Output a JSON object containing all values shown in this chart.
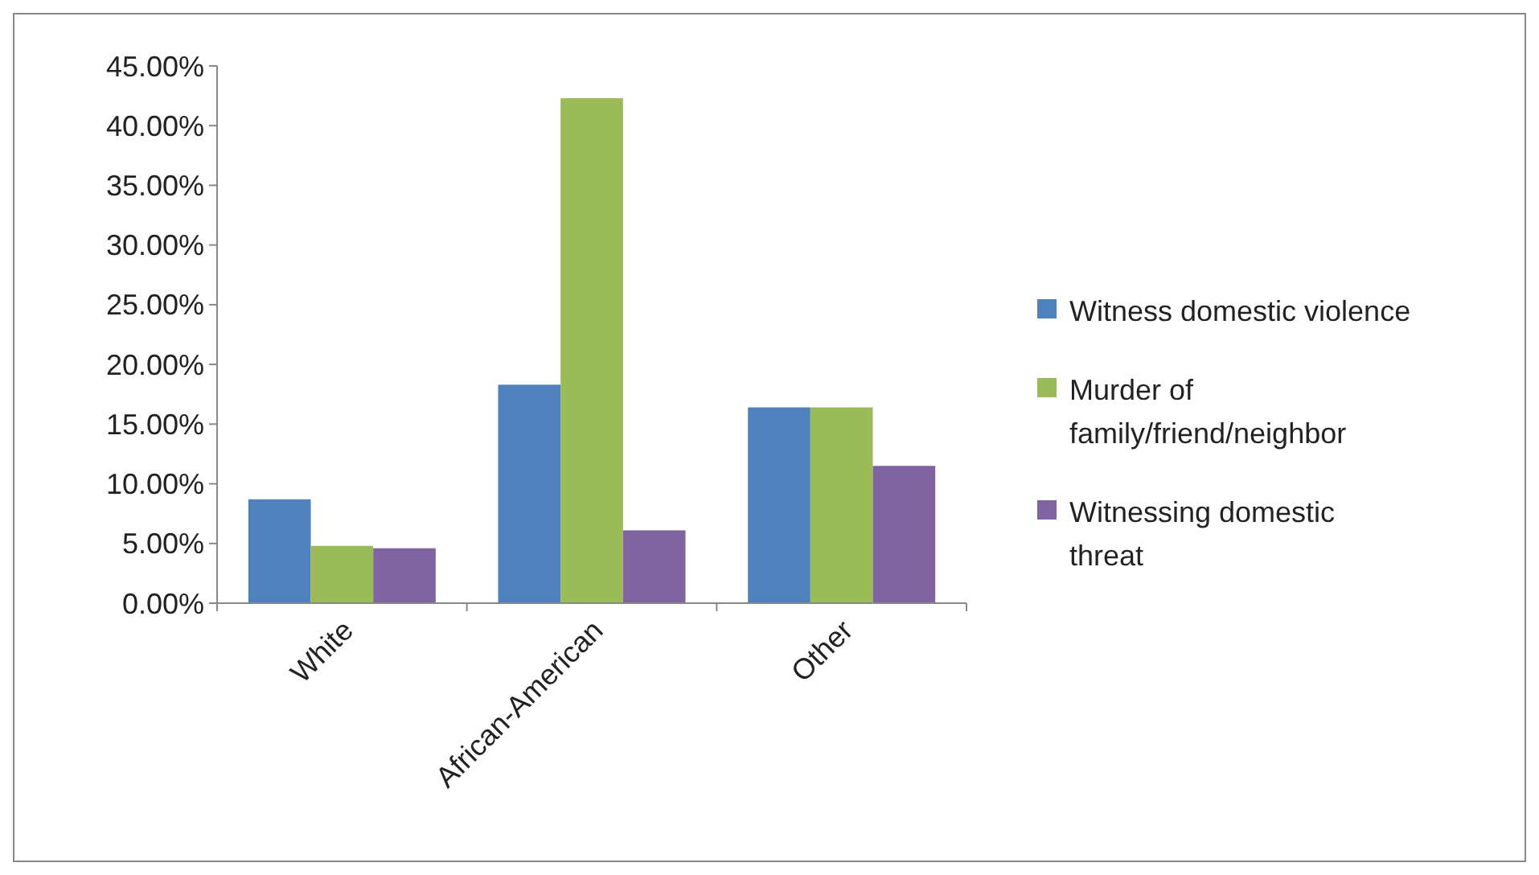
{
  "chart_data": {
    "type": "bar",
    "categories": [
      "White",
      "African-American",
      "Other"
    ],
    "series": [
      {
        "name": "Witness domestic violence",
        "color": "#4f81bd",
        "values": [
          8.7,
          18.3,
          16.4
        ]
      },
      {
        "name": "Murder of family/friend/neighbor",
        "color": "#9bbb59",
        "values": [
          4.8,
          42.3,
          16.4
        ]
      },
      {
        "name": "Witnessing domestic threat",
        "color": "#8064a2",
        "values": [
          4.6,
          6.1,
          11.5
        ]
      }
    ],
    "ylim": [
      0,
      45
    ],
    "yticks": [
      {
        "value": 0,
        "label": "0.00%"
      },
      {
        "value": 5,
        "label": "5.00%"
      },
      {
        "value": 10,
        "label": "10.00%"
      },
      {
        "value": 15,
        "label": "15.00%"
      },
      {
        "value": 20,
        "label": "20.00%"
      },
      {
        "value": 25,
        "label": "25.00%"
      },
      {
        "value": 30,
        "label": "30.00%"
      },
      {
        "value": 35,
        "label": "35.00%"
      },
      {
        "value": 40,
        "label": "40.00%"
      },
      {
        "value": 45,
        "label": "45.00%"
      }
    ],
    "grid": false,
    "legend": "right"
  }
}
